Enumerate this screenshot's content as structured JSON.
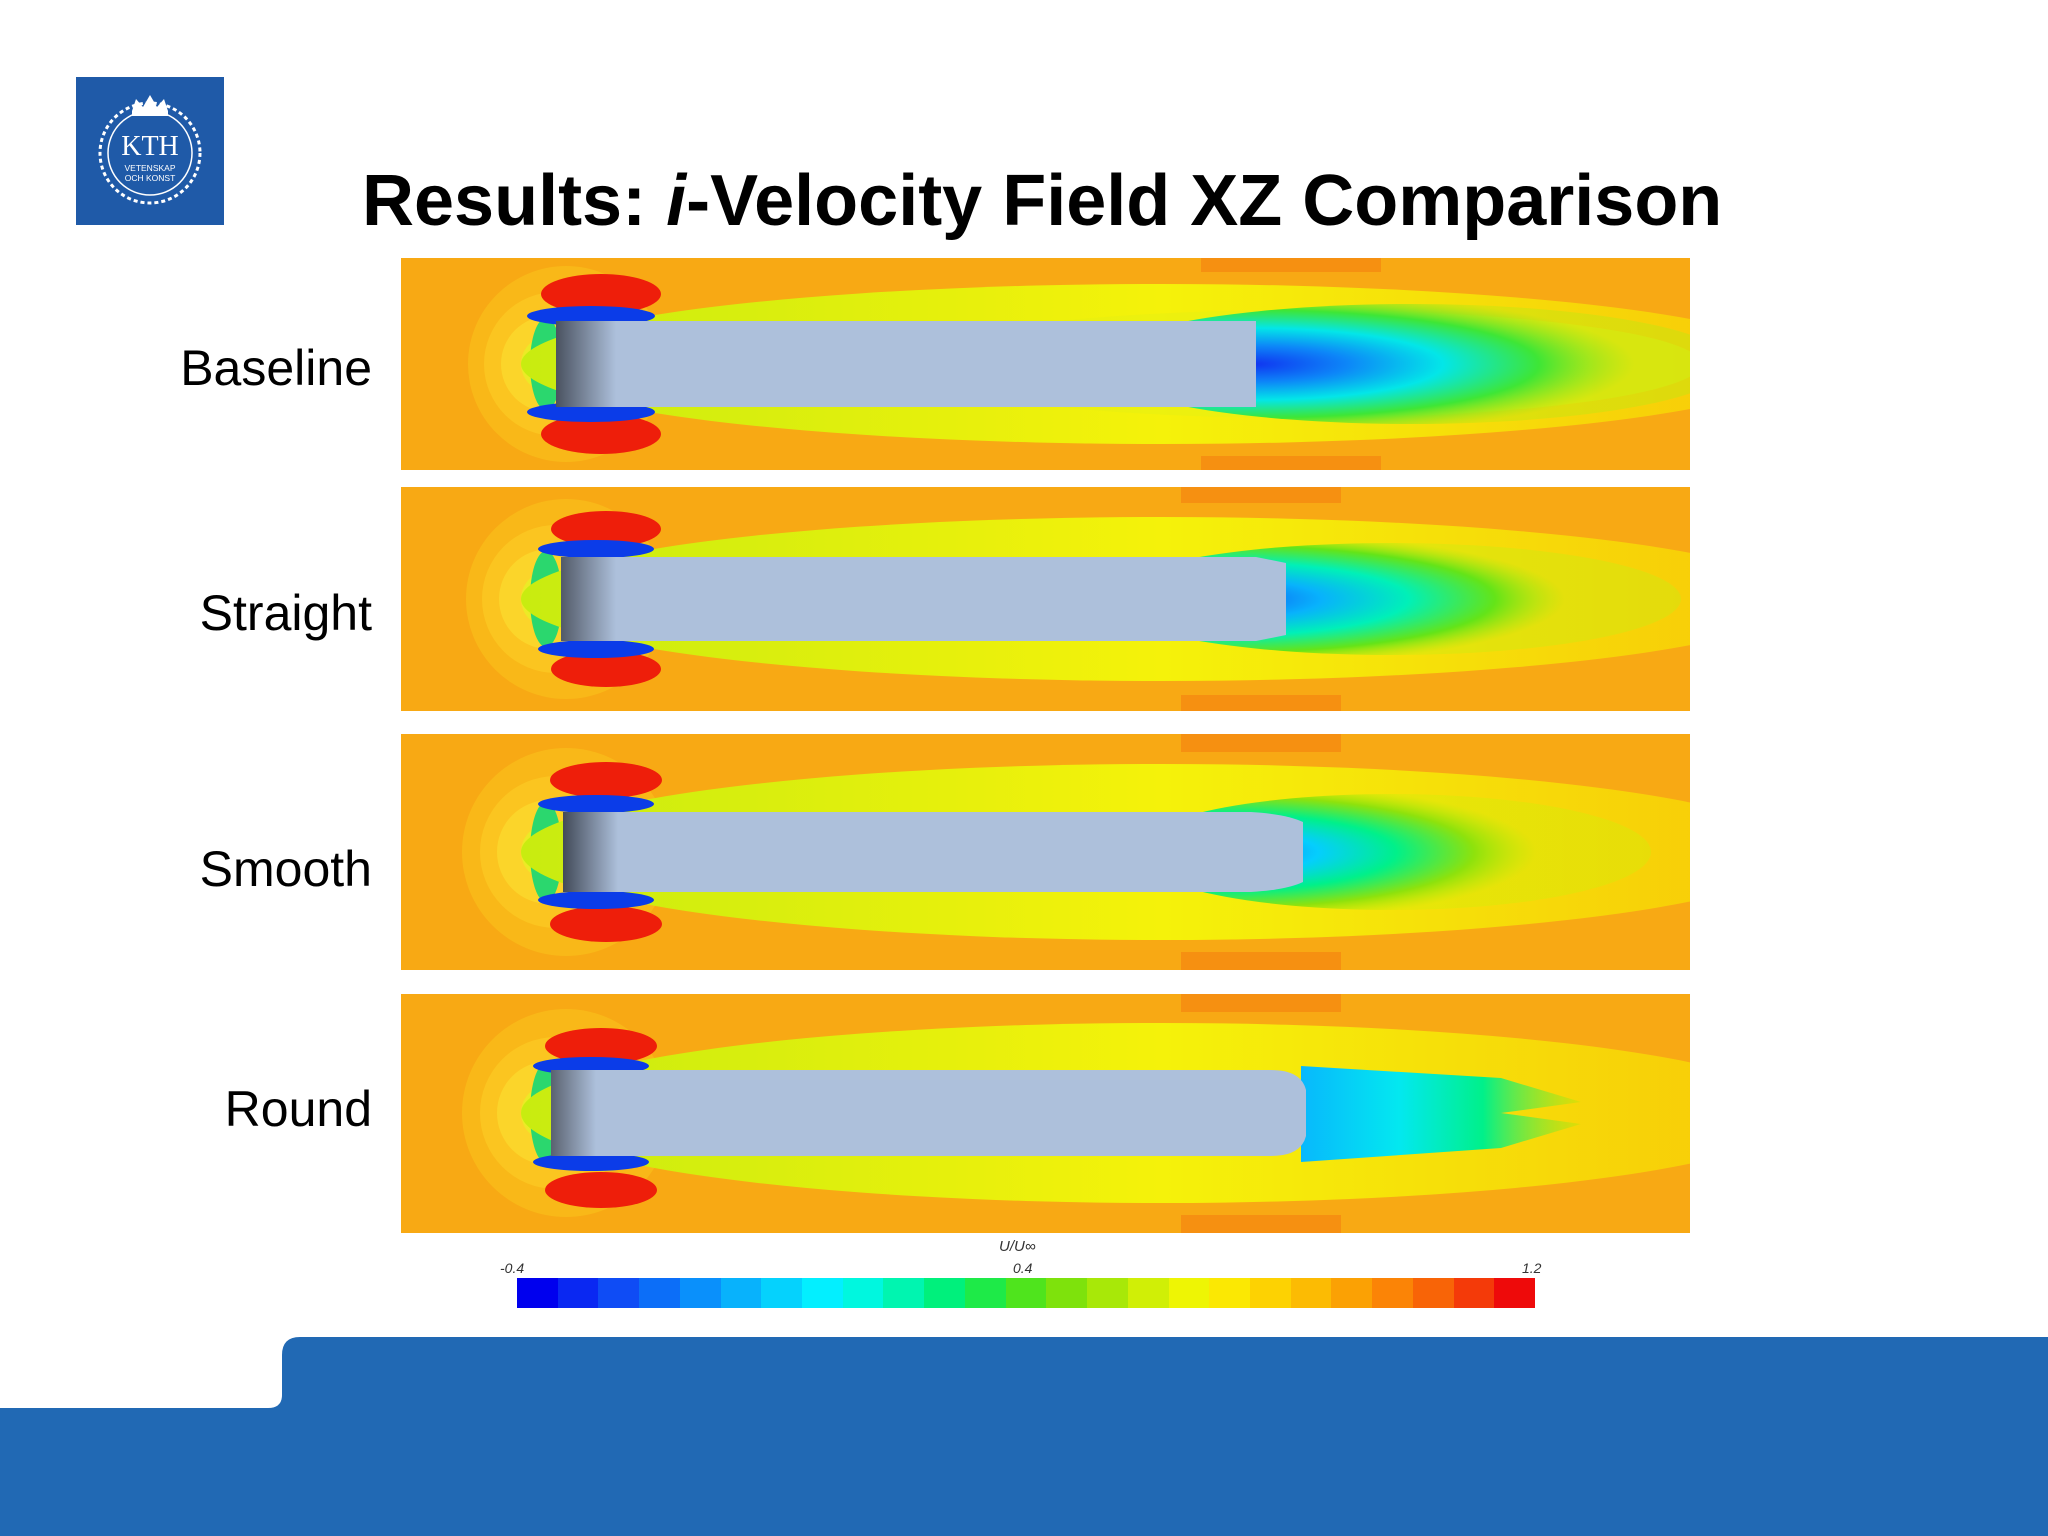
{
  "slide": {
    "title_prefix": "Results: ",
    "title_italic": "i",
    "title_suffix": "-Velocity Field XZ Comparison"
  },
  "logo": {
    "text_main": "KTH",
    "text_line1": "VETENSKAP",
    "text_line2": "OCH KONST",
    "color": "#1f5aa8"
  },
  "cases": [
    {
      "label": "Baseline",
      "tail": "blunt"
    },
    {
      "label": "Straight",
      "tail": "straight-boattail"
    },
    {
      "label": "Smooth",
      "tail": "smooth-boattail"
    },
    {
      "label": "Round",
      "tail": "round-boattail"
    }
  ],
  "colorbar": {
    "title": "U/U∞",
    "min_label": "-0.4",
    "mid_label": "0.4",
    "max_label": "1.2",
    "min": -0.4,
    "max": 1.2,
    "colors": [
      "#0000ee",
      "#0a28f2",
      "#0f4cf5",
      "#0c6ef8",
      "#0a90fb",
      "#08b2fc",
      "#05d2fd",
      "#03efff",
      "#00f7df",
      "#00f5b0",
      "#00f07c",
      "#1eea48",
      "#4fe41d",
      "#7ee20c",
      "#a8e808",
      "#d0ef06",
      "#eef504",
      "#fbe803",
      "#fdd202",
      "#fcbb03",
      "#fba104",
      "#fb8406",
      "#f86407",
      "#f43a09",
      "#ee0a0a"
    ]
  },
  "colors": {
    "footer_blue": "#2169b4",
    "body_fill": "#adc0db"
  }
}
